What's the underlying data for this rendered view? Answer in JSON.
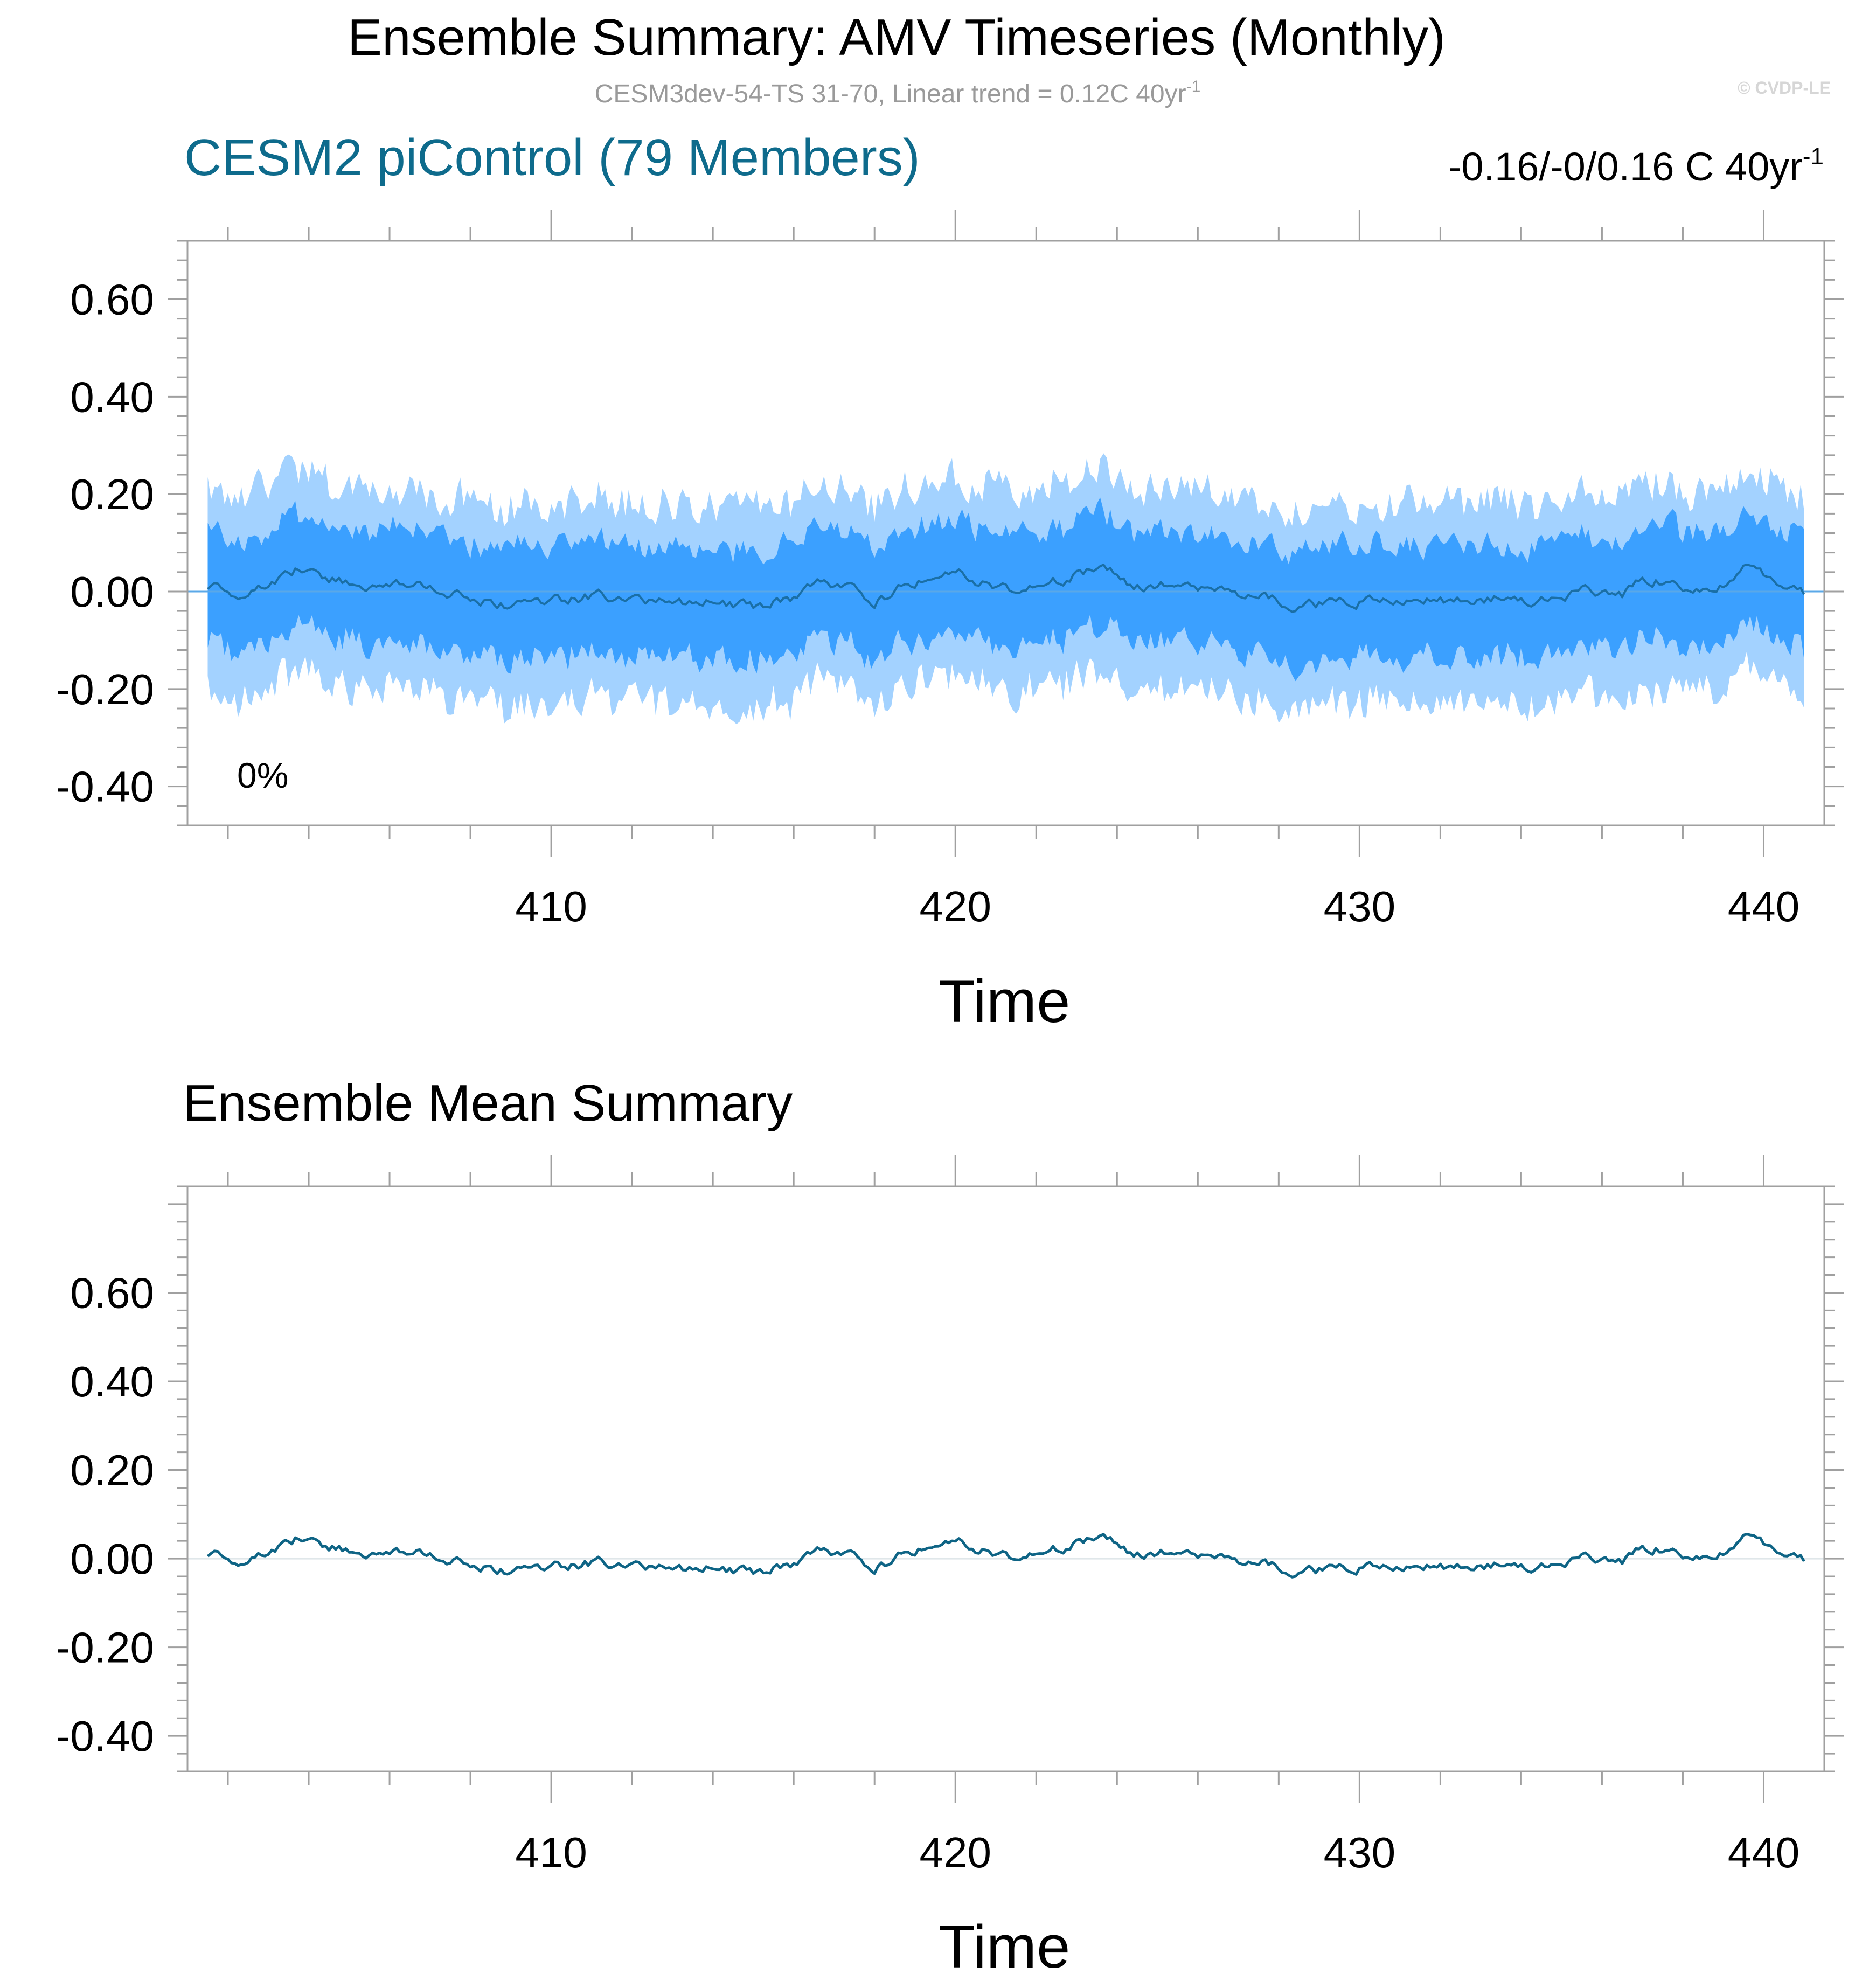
{
  "page": {
    "title": "Ensemble Summary: AMV Timeseries (Monthly)",
    "subtitle_text": "CESM3dev-54-TS 31-70, Linear trend = 0.12C 40yr",
    "subtitle_sup": "-1",
    "watermark": "© CVDP-LE"
  },
  "colors": {
    "title": "#000000",
    "subtitle": "#9a9a9a",
    "panel_label": "#0e6b8c",
    "band_outer": "#a3d2ff",
    "band_inner": "#3ba0ff",
    "mean_line": "#1a6fa6",
    "mean_line_bottom": "#0e6485",
    "zero_line": "#e0e7ea",
    "axis": "#a0a0a0"
  },
  "chart_data": [
    {
      "type": "area",
      "title": "CESM2 piControl (79 Members)",
      "corner_label_text": "-0.16/-0/0.16 C 40yr",
      "corner_label_sup": "-1",
      "annotation": "0%",
      "xlabel": "Time",
      "ylabel": "",
      "xlim": [
        401.0,
        441.5
      ],
      "ylim": [
        -0.48,
        0.72
      ],
      "xticks": [
        410,
        420,
        430,
        440
      ],
      "xtick_labels": [
        "410",
        "420",
        "430",
        "440"
      ],
      "yticks": [
        -0.4,
        -0.2,
        0.0,
        0.2,
        0.4,
        0.6
      ],
      "ytick_labels": [
        "-0.40",
        "-0.20",
        "0.00",
        "0.20",
        "0.40",
        "0.60"
      ],
      "grid": false,
      "x_start": 401.5,
      "x_end": 441.0,
      "anchors_x": [
        401.5,
        402.5,
        403.3,
        403.8,
        404.5,
        405.5,
        406.5,
        407.5,
        408.3,
        409.0,
        410.0,
        411.0,
        412.0,
        413.0,
        414.0,
        415.0,
        416.0,
        416.7,
        417.2,
        418.0,
        419.0,
        419.8,
        420.5,
        421.5,
        422.5,
        423.5,
        424.5,
        425.5,
        426.5,
        427.5,
        428.5,
        429.5,
        430.5,
        431.5,
        432.5,
        433.5,
        434.5,
        435.5,
        436.5,
        437.0,
        437.7,
        438.5,
        439.0,
        439.6,
        440.2,
        441.0
      ],
      "mean_anchors": [
        0.01,
        -0.01,
        0.03,
        0.05,
        0.03,
        0.0,
        0.02,
        0.0,
        -0.02,
        -0.03,
        -0.02,
        -0.01,
        -0.01,
        -0.03,
        -0.02,
        -0.03,
        -0.01,
        0.03,
        0.01,
        -0.02,
        0.02,
        0.05,
        0.02,
        0.0,
        0.02,
        0.05,
        0.01,
        0.02,
        0.0,
        -0.01,
        -0.03,
        -0.02,
        -0.02,
        -0.01,
        -0.02,
        -0.01,
        -0.02,
        0.0,
        -0.01,
        0.03,
        0.02,
        0.0,
        0.02,
        0.055,
        0.03,
        -0.005
      ],
      "series": [
        {
          "name": "",
          "role": "outer-band",
          "lower_offset": -0.21,
          "upper_offset": 0.2
        },
        {
          "name": "",
          "role": "inner-band",
          "lower_offset": -0.115,
          "upper_offset": 0.115
        },
        {
          "name": "",
          "role": "ensemble-mean"
        }
      ]
    },
    {
      "type": "line",
      "title": "Ensemble Mean Summary",
      "xlabel": "Time",
      "ylabel": "",
      "xlim": [
        401.0,
        441.5
      ],
      "ylim": [
        -0.48,
        0.84
      ],
      "xticks": [
        410,
        420,
        430,
        440
      ],
      "xtick_labels": [
        "410",
        "420",
        "430",
        "440"
      ],
      "yticks": [
        -0.4,
        -0.2,
        0.0,
        0.2,
        0.4,
        0.6
      ],
      "ytick_labels": [
        "-0.40",
        "-0.20",
        "0.00",
        "0.20",
        "0.40",
        "0.60"
      ],
      "grid": false,
      "series": [
        {
          "name": "",
          "role": "ensemble-mean",
          "same_as": "panel-1 ensemble mean"
        }
      ]
    }
  ]
}
